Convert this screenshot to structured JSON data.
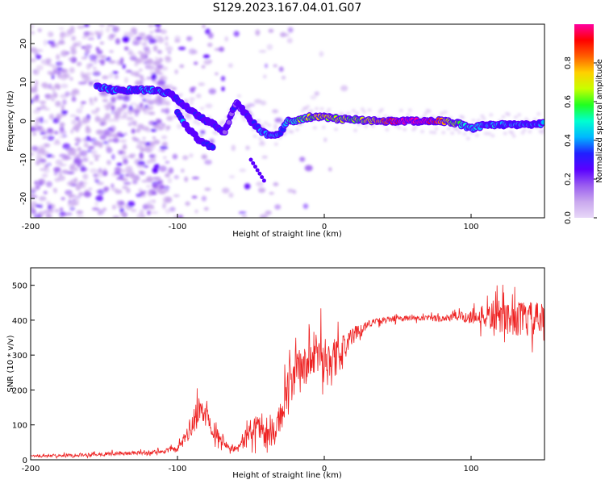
{
  "figure_title": "S129.2023.167.04.01.G07",
  "colors": {
    "snr_line": "#ee2222",
    "colormap": [
      "#e8d8f8",
      "#c9a8ee",
      "#9a5cf0",
      "#5a00ff",
      "#2020ff",
      "#00b8ff",
      "#00ffd0",
      "#20ff20",
      "#c8ff00",
      "#ffd000",
      "#ff6000",
      "#ff0000",
      "#ff00a0"
    ]
  },
  "chart_data": [
    {
      "type": "heatmap",
      "xlabel": "Height of straight line (km)",
      "ylabel": "Frequency (Hz)",
      "xlim": [
        -200,
        150
      ],
      "ylim": [
        -25,
        25
      ],
      "xticks": [
        -200,
        -100,
        0,
        100
      ],
      "yticks": [
        -20,
        -10,
        0,
        10,
        20
      ],
      "colorbar": {
        "label": "Normalized spectral amplitude",
        "range": [
          0,
          1
        ],
        "ticks": [
          0.0,
          0.2,
          0.4,
          0.6,
          0.8
        ]
      },
      "ridge": {
        "x": [
          -155,
          -145,
          -135,
          -125,
          -115,
          -105,
          -95,
          -85,
          -75,
          -68,
          -60,
          -50,
          -42,
          -35,
          -30,
          -25,
          -20,
          -10,
          0,
          10,
          20,
          30,
          40,
          50,
          60,
          70,
          80,
          90,
          100,
          110,
          120,
          130,
          140,
          150
        ],
        "y": [
          9,
          8,
          8,
          8,
          8,
          7,
          4,
          1,
          -1,
          -3,
          5,
          0,
          -3,
          -4,
          -3,
          0,
          0,
          1,
          1,
          0.5,
          0.5,
          0,
          0,
          0,
          0,
          0,
          0,
          -0.5,
          -2,
          -1,
          -1,
          -1,
          -1,
          -0.5
        ],
        "amplitude": [
          0.3,
          0.3,
          0.3,
          0.3,
          0.3,
          0.25,
          0.2,
          0.2,
          0.2,
          0.15,
          0.15,
          0.2,
          0.3,
          0.3,
          0.3,
          0.4,
          0.45,
          0.55,
          0.6,
          0.55,
          0.55,
          0.6,
          0.7,
          0.9,
          1.0,
          0.95,
          0.7,
          0.5,
          0.35,
          0.35,
          0.3,
          0.3,
          0.3,
          0.3
        ]
      },
      "branch": {
        "x": [
          -100,
          -95,
          -90,
          -85,
          -80,
          -75
        ],
        "y": [
          2,
          -1,
          -3,
          -5,
          -6,
          -7
        ],
        "amplitude": [
          0.25,
          0.22,
          0.2,
          0.2,
          0.18,
          0.18
        ]
      },
      "faint_streak": {
        "x": [
          -50,
          -45,
          -40
        ],
        "y": [
          -10,
          -13,
          -16
        ]
      }
    },
    {
      "type": "line",
      "xlabel": "Height of straight line (km)",
      "ylabel": "SNR (10 * v/v)",
      "xlim": [
        -200,
        150
      ],
      "ylim": [
        0,
        550
      ],
      "xticks": [
        -200,
        -100,
        0,
        100
      ],
      "yticks": [
        0,
        100,
        200,
        300,
        400,
        500
      ],
      "envelope": {
        "x": [
          -200,
          -180,
          -160,
          -140,
          -120,
          -110,
          -100,
          -95,
          -90,
          -85,
          -80,
          -75,
          -70,
          -65,
          -60,
          -55,
          -50,
          -45,
          -40,
          -35,
          -30,
          -25,
          -20,
          -15,
          -10,
          -5,
          0,
          5,
          10,
          20,
          30,
          40,
          50,
          60,
          70,
          80,
          90,
          100,
          110,
          120,
          130,
          140,
          150
        ],
        "mean": [
          10,
          12,
          15,
          18,
          20,
          25,
          30,
          60,
          100,
          140,
          130,
          80,
          60,
          40,
          30,
          50,
          90,
          100,
          70,
          70,
          120,
          200,
          240,
          260,
          280,
          300,
          310,
          280,
          300,
          360,
          390,
          400,
          405,
          405,
          405,
          405,
          410,
          410,
          410,
          410,
          405,
          400,
          400
        ],
        "spread": [
          6,
          6,
          8,
          8,
          8,
          10,
          12,
          30,
          50,
          60,
          50,
          30,
          25,
          15,
          15,
          30,
          50,
          60,
          40,
          45,
          60,
          90,
          100,
          90,
          80,
          90,
          100,
          100,
          70,
          30,
          15,
          12,
          12,
          12,
          12,
          15,
          20,
          30,
          50,
          70,
          70,
          75,
          70
        ]
      }
    }
  ]
}
